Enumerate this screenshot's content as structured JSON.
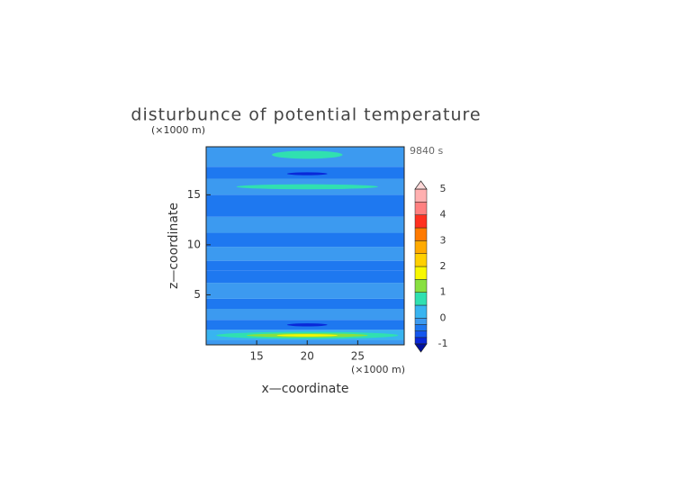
{
  "chart_data": {
    "type": "contour",
    "title": "disturbunce of potential temperature",
    "time_label": "9840 s",
    "xlabel": "x—coordinate",
    "ylabel": "z—coordinate",
    "x_unit": "(×1000 m)",
    "y_unit": "(×1000 m)",
    "xlim": [
      10,
      29.6
    ],
    "ylim": [
      0,
      19.8
    ],
    "xticks": [
      15,
      20,
      25
    ],
    "yticks": [
      5,
      10,
      15
    ],
    "colorbar": {
      "levels": [
        -1,
        -0.75,
        -0.5,
        -0.25,
        0,
        0.5,
        1,
        1.5,
        2,
        2.5,
        3,
        3.5,
        4,
        4.5,
        5
      ],
      "colors": [
        "#0a28d8",
        "#1456ee",
        "#1e78f0",
        "#3c9af0",
        "#38b4f0",
        "#30e0b0",
        "#88e040",
        "#f8f800",
        "#ffd000",
        "#ffaa00",
        "#ff7a00",
        "#ff3020",
        "#ff8080",
        "#ffb0b0"
      ],
      "under_color": "#0010a0",
      "over_color": "#ffd8d8",
      "ticks": [
        -1,
        0,
        1,
        2,
        3,
        4,
        5
      ]
    },
    "bands": [
      {
        "y": [
          0,
          0.5
        ],
        "value": -0.1
      },
      {
        "y": [
          0.5,
          1.5
        ],
        "value": 0.2
      },
      {
        "y": [
          1.5,
          2.5
        ],
        "value": -0.4
      },
      {
        "y": [
          2.5,
          3.6
        ],
        "value": -0.2
      },
      {
        "y": [
          3.6,
          4.6
        ],
        "value": -0.4
      },
      {
        "y": [
          4.6,
          6.2
        ],
        "value": -0.2
      },
      {
        "y": [
          6.2,
          7.4
        ],
        "value": -0.3
      },
      {
        "y": [
          7.4,
          8.4
        ],
        "value": -0.4
      },
      {
        "y": [
          8.4,
          9.8
        ],
        "value": -0.2
      },
      {
        "y": [
          9.8,
          11.2
        ],
        "value": -0.3
      },
      {
        "y": [
          11.2,
          12.8
        ],
        "value": -0.2
      },
      {
        "y": [
          12.8,
          15.0
        ],
        "value": -0.4
      },
      {
        "y": [
          15.0,
          16.6
        ],
        "value": -0.2
      },
      {
        "y": [
          16.6,
          17.8
        ],
        "value": -0.4
      },
      {
        "y": [
          17.8,
          19.8
        ],
        "value": -0.2
      }
    ],
    "patches": [
      {
        "x": 20,
        "y": 0.95,
        "rx": 9,
        "ry": 0.35,
        "value": 0.7
      },
      {
        "x": 20,
        "y": 0.95,
        "rx": 6,
        "ry": 0.2,
        "value": 1.2
      },
      {
        "x": 20,
        "y": 0.95,
        "rx": 3,
        "ry": 0.12,
        "value": 1.7
      },
      {
        "x": 20,
        "y": 2.0,
        "rx": 2,
        "ry": 0.15,
        "value": -0.8
      },
      {
        "x": 20,
        "y": 15.8,
        "rx": 7,
        "ry": 0.25,
        "value": 0.7
      },
      {
        "x": 20,
        "y": 17.1,
        "rx": 2,
        "ry": 0.15,
        "value": -0.8
      },
      {
        "x": 20,
        "y": 19.0,
        "rx": 3.5,
        "ry": 0.4,
        "value": 0.7
      }
    ]
  }
}
